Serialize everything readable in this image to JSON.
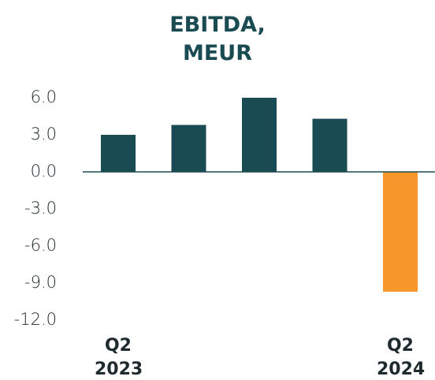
{
  "chart_data": {
    "type": "bar",
    "title": "EBITDA, MEUR",
    "categories": [
      "Q2 2023",
      null,
      null,
      null,
      "Q2 2024"
    ],
    "values": [
      3.0,
      3.8,
      6.0,
      4.3,
      -9.7
    ],
    "colors": [
      "#1b4b52",
      "#1b4b52",
      "#1b4b52",
      "#1b4b52",
      "#f7962b"
    ],
    "ylim": [
      -12,
      6
    ],
    "yticks": [
      {
        "value": 6,
        "label": "6.0"
      },
      {
        "value": 3,
        "label": "3.0"
      },
      {
        "value": 0,
        "label": "0.0"
      },
      {
        "value": -3,
        "label": "-3.0"
      },
      {
        "value": -6,
        "label": "-6.0"
      },
      {
        "value": -9,
        "label": "-9.0"
      },
      {
        "value": -12,
        "label": "-12.0"
      }
    ]
  }
}
